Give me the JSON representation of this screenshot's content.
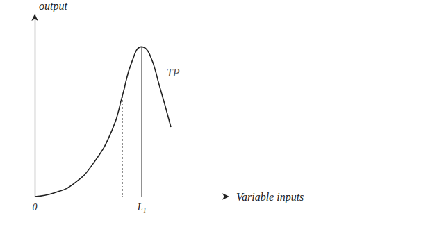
{
  "chart_data": {
    "type": "line",
    "x_label": "Variable inputs",
    "y_label": "output",
    "x": [
      0,
      1,
      2,
      3,
      4,
      4.5,
      5,
      5.5,
      5.9,
      6.4,
      7
    ],
    "values": [
      0,
      0.2,
      0.7,
      1.8,
      3.7,
      5.5,
      7.4,
      8.2,
      7.8,
      6.1,
      3.8
    ],
    "color": "#222222",
    "xlim": [
      0,
      10
    ],
    "ylim": [
      0,
      10
    ],
    "xticks": [
      0,
      {
        "value": 5.5,
        "label": "L₁"
      }
    ],
    "yticks": [],
    "tick_labels": "x",
    "grid": false,
    "annotations": [
      {
        "text": "TP",
        "x": 6.6,
        "y": 6.8
      }
    ],
    "vertical_lines": [
      {
        "x": 5.5,
        "y": 8.2,
        "line_style": "solid"
      },
      {
        "x": 4.5,
        "y": 5.5,
        "line_style": "dotted"
      }
    ]
  }
}
